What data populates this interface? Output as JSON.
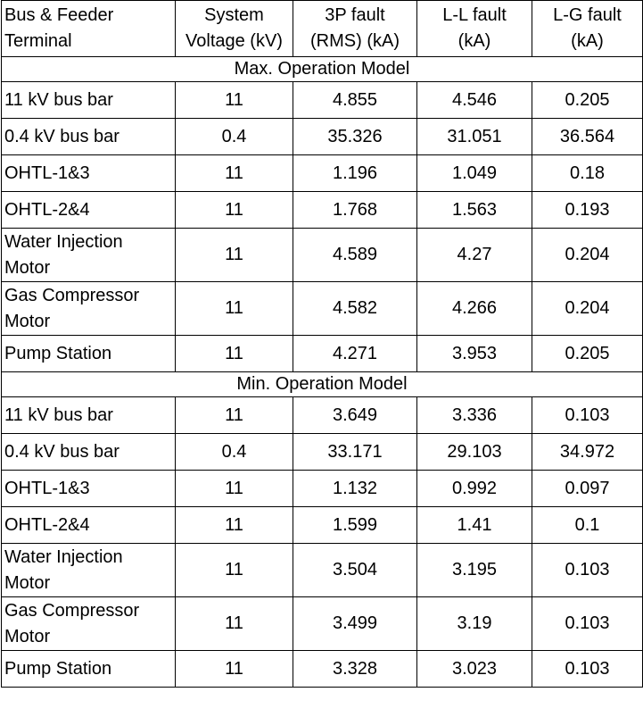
{
  "headers": [
    [
      "Bus & Feeder",
      "Terminal"
    ],
    [
      "System",
      "Voltage (kV)"
    ],
    [
      "3P fault",
      "(RMS) (kA)"
    ],
    [
      "L-L fault",
      "(kA)"
    ],
    [
      "L-G fault",
      "(kA)"
    ]
  ],
  "sections": [
    {
      "title": "Max. Operation Model",
      "rows": [
        {
          "terminal": [
            "11 kV bus bar"
          ],
          "voltage": "11",
          "fault_3p": "4.855",
          "fault_ll": "4.546",
          "fault_lg": "0.205"
        },
        {
          "terminal": [
            "0.4 kV bus bar"
          ],
          "voltage": "0.4",
          "fault_3p": "35.326",
          "fault_ll": "31.051",
          "fault_lg": "36.564"
        },
        {
          "terminal": [
            "OHTL-1&3"
          ],
          "voltage": "11",
          "fault_3p": "1.196",
          "fault_ll": "1.049",
          "fault_lg": "0.18"
        },
        {
          "terminal": [
            "OHTL-2&4"
          ],
          "voltage": "11",
          "fault_3p": "1.768",
          "fault_ll": "1.563",
          "fault_lg": "0.193"
        },
        {
          "terminal": [
            "Water Injection",
            "Motor"
          ],
          "voltage": "11",
          "fault_3p": "4.589",
          "fault_ll": "4.27",
          "fault_lg": "0.204"
        },
        {
          "terminal": [
            "Gas Compressor",
            "Motor"
          ],
          "voltage": "11",
          "fault_3p": "4.582",
          "fault_ll": "4.266",
          "fault_lg": "0.204"
        },
        {
          "terminal": [
            "Pump Station"
          ],
          "voltage": "11",
          "fault_3p": "4.271",
          "fault_ll": "3.953",
          "fault_lg": "0.205"
        }
      ]
    },
    {
      "title": "Min. Operation Model",
      "rows": [
        {
          "terminal": [
            "11 kV bus bar"
          ],
          "voltage": "11",
          "fault_3p": "3.649",
          "fault_ll": "3.336",
          "fault_lg": "0.103"
        },
        {
          "terminal": [
            "0.4 kV bus bar"
          ],
          "voltage": "0.4",
          "fault_3p": "33.171",
          "fault_ll": "29.103",
          "fault_lg": "34.972"
        },
        {
          "terminal": [
            "OHTL-1&3"
          ],
          "voltage": "11",
          "fault_3p": "1.132",
          "fault_ll": "0.992",
          "fault_lg": "0.097"
        },
        {
          "terminal": [
            "OHTL-2&4"
          ],
          "voltage": "11",
          "fault_3p": "1.599",
          "fault_ll": "1.41",
          "fault_lg": "0.1"
        },
        {
          "terminal": [
            "Water Injection",
            "Motor"
          ],
          "voltage": "11",
          "fault_3p": "3.504",
          "fault_ll": "3.195",
          "fault_lg": "0.103"
        },
        {
          "terminal": [
            "Gas Compressor",
            "Motor"
          ],
          "voltage": "11",
          "fault_3p": "3.499",
          "fault_ll": "3.19",
          "fault_lg": "0.103"
        },
        {
          "terminal": [
            "Pump Station"
          ],
          "voltage": "11",
          "fault_3p": "3.328",
          "fault_ll": "3.023",
          "fault_lg": "0.103"
        }
      ]
    }
  ]
}
